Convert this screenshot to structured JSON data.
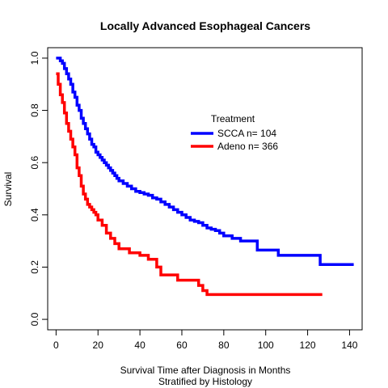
{
  "chart_data": {
    "type": "line",
    "title": "Locally Advanced Esophageal Cancers",
    "xlabel": "Survival Time after Diagnosis in Months",
    "xlabel_line2": "Stratified by Histology",
    "ylabel": "Survival",
    "xlim": [
      -4,
      146
    ],
    "ylim": [
      -0.04,
      1.04
    ],
    "x_ticks": [
      0,
      20,
      40,
      60,
      80,
      100,
      120,
      140
    ],
    "x_tick_labels": [
      "0",
      "20",
      "40",
      "60",
      "80",
      "100",
      "120",
      "140"
    ],
    "y_ticks": [
      0.0,
      0.2,
      0.4,
      0.6,
      0.8,
      1.0
    ],
    "y_tick_labels": [
      "0.0",
      "0.2",
      "0.4",
      "0.6",
      "0.8",
      "1.0"
    ],
    "grid": false,
    "legend": {
      "title": "Treatment",
      "position": "upper-right-center"
    },
    "series": [
      {
        "name": "SCCA n= 104",
        "color": "#0000ff",
        "step": true,
        "x": [
          0,
          2,
          3,
          4,
          5,
          6,
          7,
          8,
          9,
          10,
          11,
          12,
          13,
          14,
          15,
          16,
          17,
          18,
          19,
          20,
          21,
          22,
          23,
          24,
          25,
          26,
          27,
          28,
          29,
          30,
          32,
          34,
          36,
          38,
          40,
          42,
          44,
          46,
          48,
          50,
          52,
          54,
          56,
          58,
          60,
          62,
          64,
          66,
          68,
          70,
          72,
          74,
          76,
          78,
          80,
          84,
          88,
          96,
          106,
          126,
          142
        ],
        "y": [
          1.0,
          0.99,
          0.98,
          0.96,
          0.94,
          0.92,
          0.9,
          0.87,
          0.85,
          0.82,
          0.8,
          0.77,
          0.75,
          0.73,
          0.71,
          0.69,
          0.67,
          0.66,
          0.64,
          0.63,
          0.62,
          0.61,
          0.6,
          0.59,
          0.58,
          0.57,
          0.56,
          0.55,
          0.54,
          0.53,
          0.52,
          0.51,
          0.5,
          0.49,
          0.485,
          0.48,
          0.475,
          0.465,
          0.46,
          0.45,
          0.44,
          0.43,
          0.42,
          0.41,
          0.4,
          0.39,
          0.38,
          0.375,
          0.37,
          0.36,
          0.35,
          0.345,
          0.34,
          0.33,
          0.32,
          0.31,
          0.3,
          0.265,
          0.245,
          0.21,
          0.21
        ]
      },
      {
        "name": "Adeno n= 366",
        "color": "#ff0000",
        "step": true,
        "x": [
          0,
          1,
          2,
          3,
          4,
          5,
          6,
          7,
          8,
          9,
          10,
          11,
          12,
          13,
          14,
          15,
          16,
          17,
          18,
          19,
          20,
          22,
          24,
          26,
          28,
          30,
          35,
          40,
          44,
          48,
          50,
          58,
          68,
          70,
          72,
          127
        ],
        "y": [
          0.94,
          0.9,
          0.86,
          0.83,
          0.79,
          0.75,
          0.72,
          0.69,
          0.66,
          0.63,
          0.58,
          0.55,
          0.51,
          0.48,
          0.46,
          0.44,
          0.43,
          0.42,
          0.41,
          0.4,
          0.38,
          0.36,
          0.33,
          0.31,
          0.29,
          0.27,
          0.255,
          0.245,
          0.23,
          0.2,
          0.17,
          0.15,
          0.13,
          0.11,
          0.095,
          0.095
        ]
      }
    ]
  }
}
